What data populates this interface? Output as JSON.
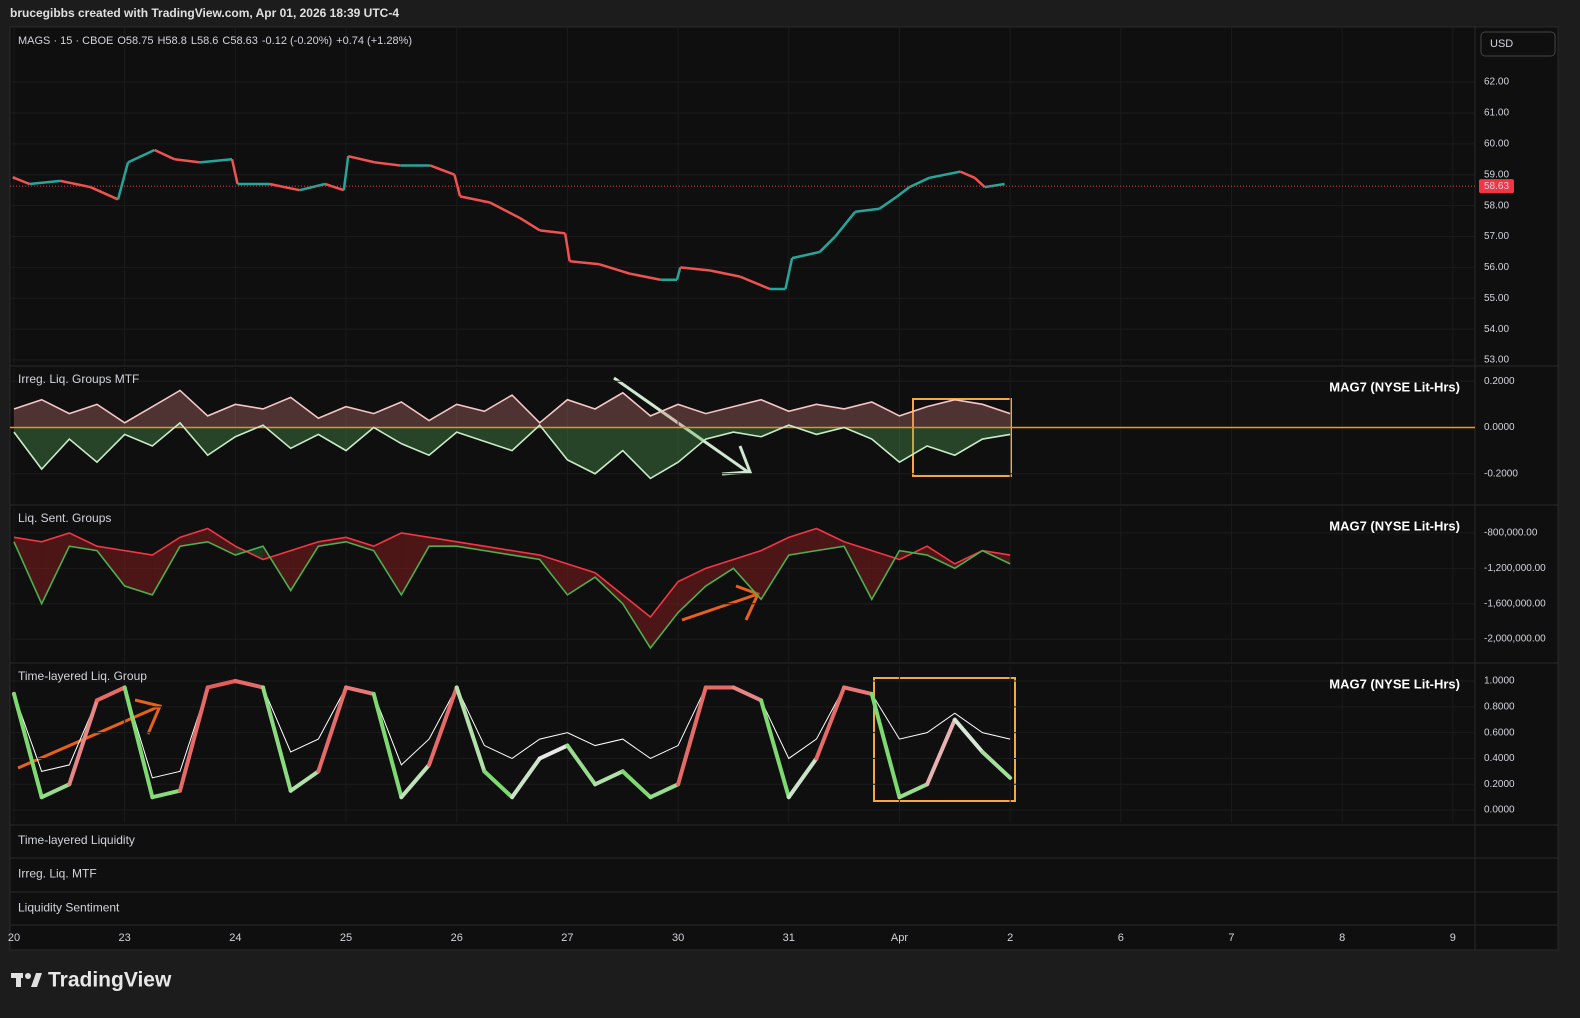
{
  "header": {
    "text": "brucegibbs created with TradingView.com, Apr 01, 2026 18:39 UTC-4"
  },
  "currency": "USD",
  "chart_data": [
    {
      "type": "line",
      "symbol": "MAGS · 15 · CBOE",
      "legend": [
        {
          "label": "O",
          "value": 58.75
        },
        {
          "label": "H",
          "value": 58.8
        },
        {
          "label": "L",
          "value": 58.6
        },
        {
          "label": "C",
          "value": 58.63
        }
      ],
      "change": "-0.12 (-0.20%)",
      "extended_change": "+0.74 (+1.28%)",
      "last_price": 58.63,
      "last_price_color": "#f23645",
      "up_color": "#26a69a",
      "down_color": "#ef5350",
      "x": [
        0,
        0.14,
        0.42,
        0.69,
        0.94,
        1.03,
        1.27,
        1.45,
        1.68,
        1.97,
        2.02,
        2.31,
        2.58,
        2.81,
        2.98,
        3.02,
        3.26,
        3.49,
        3.76,
        3.98,
        4.03,
        4.3,
        4.57,
        4.75,
        4.98,
        5.02,
        5.29,
        5.56,
        5.84,
        5.99,
        6.02,
        6.29,
        6.56,
        6.83,
        6.97,
        7.03,
        7.28,
        7.42,
        7.6,
        7.82,
        7.98,
        8.09,
        8.27,
        8.55,
        8.68,
        8.77,
        8.95
      ],
      "values": [
        58.9,
        58.7,
        58.8,
        58.6,
        58.2,
        59.4,
        59.8,
        59.5,
        59.4,
        59.5,
        58.7,
        58.7,
        58.5,
        58.7,
        58.5,
        59.6,
        59.4,
        59.3,
        59.3,
        59.0,
        58.3,
        58.1,
        57.6,
        57.2,
        57.1,
        56.2,
        56.1,
        55.8,
        55.6,
        55.6,
        56.0,
        55.9,
        55.7,
        55.3,
        55.3,
        56.3,
        56.5,
        57.0,
        57.8,
        57.9,
        58.3,
        58.6,
        58.9,
        59.1,
        58.9,
        58.6,
        58.7
      ],
      "xlim": [
        -0.036,
        13.2
      ],
      "xticks": [
        {
          "value": 0,
          "label": "20"
        },
        {
          "value": 1,
          "label": "23"
        },
        {
          "value": 2,
          "label": "24"
        },
        {
          "value": 3,
          "label": "25"
        },
        {
          "value": 4,
          "label": "26"
        },
        {
          "value": 5,
          "label": "27"
        },
        {
          "value": 6,
          "label": "30"
        },
        {
          "value": 7,
          "label": "31"
        },
        {
          "value": 8,
          "label": "Apr"
        },
        {
          "value": 9,
          "label": "2"
        },
        {
          "value": 10,
          "label": "6"
        },
        {
          "value": 11,
          "label": "7"
        },
        {
          "value": 12,
          "label": "8"
        },
        {
          "value": 13,
          "label": "9"
        }
      ],
      "ylim": [
        52.84,
        63.75
      ],
      "yticks": [
        {
          "value": 53,
          "label": "53.00"
        },
        {
          "value": 54,
          "label": "54.00"
        },
        {
          "value": 55,
          "label": "55.00"
        },
        {
          "value": 56,
          "label": "56.00"
        },
        {
          "value": 57,
          "label": "57.00"
        },
        {
          "value": 58,
          "label": "58.00"
        },
        {
          "value": 59,
          "label": "59.00"
        },
        {
          "value": 60,
          "label": "60.00"
        },
        {
          "value": 61,
          "label": "61.00"
        },
        {
          "value": 62,
          "label": "62.00"
        }
      ]
    },
    {
      "type": "line",
      "title": "Irreg. Liq. Groups MTF",
      "right_label": "MAG7 (NYSE Lit-Hrs)",
      "zero_color": "#ff9800",
      "fill_to_zero": true,
      "x": [
        0,
        0.25,
        0.5,
        0.75,
        1,
        1.25,
        1.5,
        1.75,
        2,
        2.25,
        2.5,
        2.75,
        3,
        3.25,
        3.5,
        3.75,
        4,
        4.25,
        4.5,
        4.75,
        5,
        5.25,
        5.5,
        5.75,
        6,
        6.25,
        6.5,
        6.75,
        7,
        7.25,
        7.5,
        7.75,
        8,
        8.25,
        8.5,
        8.75,
        9
      ],
      "series": [
        {
          "color": "#f5c6c6",
          "fill": "rgba(200,120,120,0.35)",
          "values": [
            0.08,
            0.12,
            0.06,
            0.1,
            0.02,
            0.09,
            0.16,
            0.05,
            0.1,
            0.08,
            0.13,
            0.04,
            0.09,
            0.06,
            0.11,
            0.03,
            0.1,
            0.07,
            0.14,
            0.02,
            0.12,
            0.08,
            0.15,
            0.05,
            0.1,
            0.06,
            0.09,
            0.12,
            0.07,
            0.1,
            0.08,
            0.11,
            0.05,
            0.09,
            0.12,
            0.1,
            0.06
          ]
        },
        {
          "color": "#c8ecc8",
          "fill": "rgba(90,170,90,0.35)",
          "values": [
            -0.02,
            -0.18,
            -0.05,
            -0.15,
            -0.03,
            -0.08,
            0.02,
            -0.12,
            -0.04,
            0.01,
            -0.09,
            -0.03,
            -0.1,
            0.0,
            -0.07,
            -0.12,
            -0.02,
            -0.06,
            -0.1,
            0.01,
            -0.14,
            -0.2,
            -0.1,
            -0.22,
            -0.15,
            -0.05,
            -0.02,
            -0.04,
            0.01,
            -0.03,
            0.0,
            -0.05,
            -0.15,
            -0.08,
            -0.12,
            -0.05,
            -0.03
          ]
        }
      ],
      "ylim": [
        -0.335,
        0.257
      ],
      "yticks": [
        {
          "value": -0.2,
          "label": "-0.2000"
        },
        {
          "value": 0,
          "label": "0.0000"
        },
        {
          "value": 0.2,
          "label": "0.2000"
        }
      ]
    },
    {
      "type": "line",
      "title": "Liq. Sent. Groups",
      "right_label": "MAG7 (NYSE Lit-Hrs)",
      "fill_between": true,
      "x": [
        0,
        0.25,
        0.5,
        0.75,
        1,
        1.25,
        1.5,
        1.75,
        2,
        2.25,
        2.5,
        2.75,
        3,
        3.25,
        3.5,
        3.75,
        4,
        4.25,
        4.5,
        4.75,
        5,
        5.25,
        5.5,
        5.75,
        6,
        6.25,
        6.5,
        6.75,
        7,
        7.25,
        7.5,
        7.75,
        8,
        8.25,
        8.5,
        8.75,
        9
      ],
      "series": [
        {
          "color": "#f23645",
          "fill": "rgba(150,30,30,0.45)",
          "values": [
            -850000,
            -900000,
            -800000,
            -950000,
            -1000000,
            -1050000,
            -850000,
            -750000,
            -950000,
            -1100000,
            -1000000,
            -900000,
            -850000,
            -950000,
            -800000,
            -850000,
            -900000,
            -950000,
            -1000000,
            -1050000,
            -1150000,
            -1250000,
            -1500000,
            -1750000,
            -1350000,
            -1200000,
            -1100000,
            -1000000,
            -850000,
            -750000,
            -900000,
            -1000000,
            -1100000,
            -950000,
            -1150000,
            -1000000,
            -1050000
          ]
        },
        {
          "color": "#4caf50",
          "fill": "rgba(40,110,50,0.45)",
          "values": [
            -900000,
            -1600000,
            -950000,
            -1000000,
            -1400000,
            -1500000,
            -950000,
            -900000,
            -1050000,
            -950000,
            -1450000,
            -950000,
            -900000,
            -1000000,
            -1500000,
            -950000,
            -950000,
            -1000000,
            -1050000,
            -1100000,
            -1500000,
            -1300000,
            -1600000,
            -2100000,
            -1700000,
            -1400000,
            -1200000,
            -1550000,
            -1050000,
            -1000000,
            -950000,
            -1550000,
            -1000000,
            -1050000,
            -1200000,
            -1000000,
            -1150000
          ]
        }
      ],
      "ylim": [
        -2270000,
        -507000
      ],
      "yticks": [
        {
          "value": -2000000,
          "label": "-2,000,000.00"
        },
        {
          "value": -1600000,
          "label": "-1,600,000.00"
        },
        {
          "value": -1200000,
          "label": "-1,200,000.00"
        },
        {
          "value": -800000,
          "label": "-800,000.00"
        }
      ]
    },
    {
      "type": "line",
      "title": "Time-layered Liq. Group",
      "right_label": "MAG7 (NYSE Lit-Hrs)",
      "x": [
        0,
        0.25,
        0.5,
        0.75,
        1,
        1.25,
        1.5,
        1.75,
        2,
        2.25,
        2.5,
        2.75,
        3,
        3.25,
        3.5,
        3.75,
        4,
        4.25,
        4.5,
        4.75,
        5,
        5.25,
        5.5,
        5.75,
        6,
        6.25,
        6.5,
        6.75,
        7,
        7.25,
        7.5,
        7.75,
        8,
        8.25,
        8.5,
        8.75,
        9
      ],
      "series": [
        {
          "color": "#ffffff",
          "width": 1,
          "values": [
            0.9,
            0.3,
            0.35,
            0.85,
            0.95,
            0.25,
            0.3,
            0.95,
            1.0,
            0.95,
            0.45,
            0.55,
            0.95,
            0.9,
            0.35,
            0.55,
            0.95,
            0.5,
            0.4,
            0.55,
            0.6,
            0.5,
            0.55,
            0.4,
            0.5,
            0.95,
            0.95,
            0.85,
            0.4,
            0.55,
            0.95,
            0.9,
            0.55,
            0.6,
            0.75,
            0.6,
            0.55
          ]
        },
        {
          "color_low": "#4cd137",
          "color_mid": "#e8e8e8",
          "color_high": "#e53935",
          "width": 4,
          "values": [
            0.9,
            0.1,
            0.2,
            0.85,
            0.95,
            0.1,
            0.15,
            0.95,
            1.0,
            0.95,
            0.15,
            0.3,
            0.95,
            0.9,
            0.1,
            0.35,
            0.95,
            0.3,
            0.1,
            0.4,
            0.5,
            0.2,
            0.3,
            0.1,
            0.2,
            0.95,
            0.95,
            0.85,
            0.1,
            0.4,
            0.95,
            0.9,
            0.1,
            0.2,
            0.7,
            0.45,
            0.25
          ]
        }
      ],
      "ylim": [
        -0.1,
        1.124
      ],
      "yticks": [
        {
          "value": 0,
          "label": "0.0000"
        },
        {
          "value": 0.2,
          "label": "0.2000"
        },
        {
          "value": 0.4,
          "label": "0.4000"
        },
        {
          "value": 0.6,
          "label": "0.6000"
        },
        {
          "value": 0.8,
          "label": "0.8000"
        },
        {
          "value": 1,
          "label": "1.0000"
        }
      ]
    }
  ],
  "collapsed_panes": [
    "Time-layered Liquidity",
    "Irreg. Liq. MTF",
    "Liquidity Sentiment"
  ],
  "footer": {
    "brand": "TradingView"
  }
}
